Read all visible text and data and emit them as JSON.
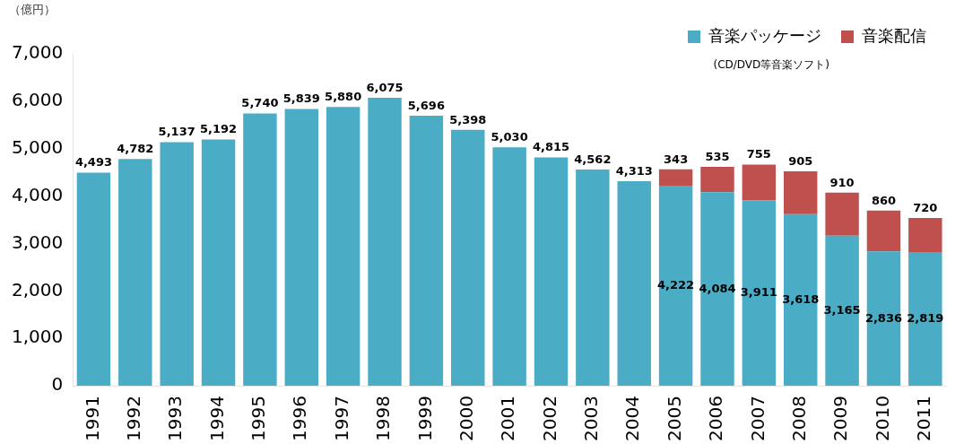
{
  "chart_data": {
    "type": "bar",
    "stacked": true,
    "ylabel": "（億円）",
    "annotations": [
      "(CD/DVD等音楽ソフト)"
    ],
    "categories": [
      "1991",
      "1992",
      "1993",
      "1994",
      "1995",
      "1996",
      "1997",
      "1998",
      "1999",
      "2000",
      "2001",
      "2002",
      "2003",
      "2004",
      "2005",
      "2006",
      "2007",
      "2008",
      "2009",
      "2010",
      "2011"
    ],
    "series": [
      {
        "name": "音楽パッケージ",
        "color": "#4bacc6",
        "values": [
          4493,
          4782,
          5137,
          5192,
          5740,
          5839,
          5880,
          6075,
          5696,
          5398,
          5030,
          4815,
          4562,
          4313,
          4222,
          4084,
          3911,
          3618,
          3165,
          2836,
          2819
        ],
        "value_labels": [
          "4,493",
          "4,782",
          "5,137",
          "5,192",
          "5,740",
          "5,839",
          "5,880",
          "6,075",
          "5,696",
          "5,398",
          "5,030",
          "4,815",
          "4,562",
          "4,313",
          "4,222",
          "4,084",
          "3,911",
          "3,618",
          "3,165",
          "2,836",
          "2,819"
        ]
      },
      {
        "name": "音楽配信",
        "color": "#c0504d",
        "values": [
          null,
          null,
          null,
          null,
          null,
          null,
          null,
          null,
          null,
          null,
          null,
          null,
          null,
          null,
          343,
          535,
          755,
          905,
          910,
          860,
          720
        ],
        "value_labels": [
          null,
          null,
          null,
          null,
          null,
          null,
          null,
          null,
          null,
          null,
          null,
          null,
          null,
          null,
          "343",
          "535",
          "755",
          "905",
          "910",
          "860",
          "720"
        ]
      }
    ],
    "ylim": [
      0,
      7000
    ],
    "yticks": [
      {
        "value": 0,
        "label": "0"
      },
      {
        "value": 1000,
        "label": "1,000"
      },
      {
        "value": 2000,
        "label": "2,000"
      },
      {
        "value": 3000,
        "label": "3,000"
      },
      {
        "value": 4000,
        "label": "4,000"
      },
      {
        "value": 5000,
        "label": "5,000"
      },
      {
        "value": 6000,
        "label": "6,000"
      },
      {
        "value": 7000,
        "label": "7,000"
      }
    ],
    "grid": false,
    "legend": "top right"
  }
}
